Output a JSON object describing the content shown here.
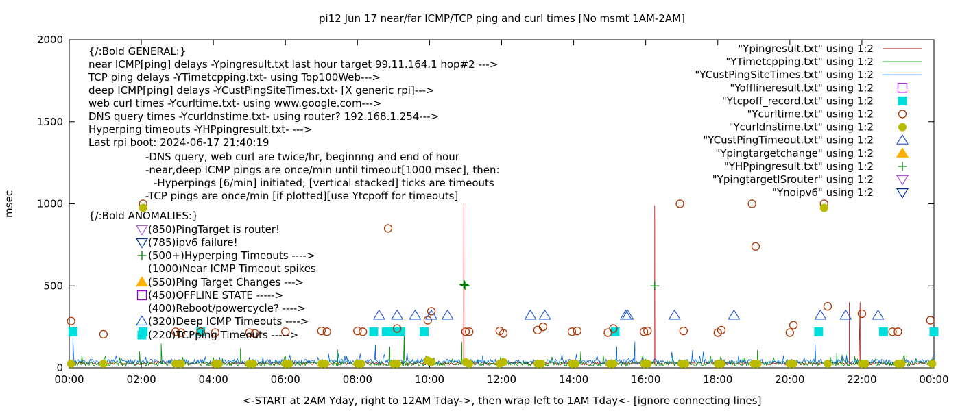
{
  "chart_data": {
    "type": "line",
    "title": "pi12  Jun 17  near/far ICMP/TCP ping and curl times [No msmt 1AM-2AM]",
    "xlabel": "<-START at 2AM Yday, right to 12AM Tday->, then wrap left to 1AM Tday<- [ignore connecting lines]",
    "ylabel": "msec",
    "xlim": [
      0,
      24
    ],
    "ylim": [
      0,
      2000
    ],
    "x_tick_labels": [
      "00:00",
      "02:00",
      "04:00",
      "06:00",
      "08:00",
      "10:00",
      "12:00",
      "14:00",
      "16:00",
      "18:00",
      "20:00",
      "22:00",
      "00:00"
    ],
    "x_ticks": [
      0,
      2,
      4,
      6,
      8,
      10,
      12,
      14,
      16,
      18,
      20,
      22,
      24
    ],
    "y_ticks": [
      0,
      500,
      1000,
      1500,
      2000
    ],
    "y_tick_labels": [
      "0",
      "500",
      "1000",
      "1500",
      "2000"
    ],
    "legend_position": "top-right",
    "annotations": [
      "{/:Bold GENERAL:}",
      "near ICMP[ping] delays -Ypingresult.txt last hour target 99.11.164.1 hop#2 --->",
      "TCP ping delays -YTimetcpping.txt- using Top100Web--->",
      "deep ICMP[ping] delays -YCustPingSiteTimes.txt- [X generic rpi]--->",
      "web curl times -Ycurltime.txt- using www.google.com--->",
      "DNS query times -Ycurldnstime.txt- using router? 192.168.1.254--->",
      "Hyperping timeouts -YHPpingresult.txt- --->",
      "Last rpi boot: 2024-06-17 21:40:19",
      "-DNS query, web curl are twice/hr, beginnng and end of hour",
      "-near,deep ICMP pings are once/min until timeout[1000 msec], then:",
      "-Hyperpings [6/min] initiated; [vertical stacked] ticks are timeouts",
      "-TCP pings are once/min [if plotted][use Ytcpoff for timeouts]",
      "{/:Bold ANOMALIES:}",
      "(850)PingTarget is router!",
      "(785)ipv6 failure!",
      "(500+)Hyperping Timeouts ---->",
      "(1000)Near ICMP Timeout spikes",
      "(550)Ping Target Changes --->",
      "(450)OFFLINE STATE ----->",
      "(400)Reboot/powercycle? ---->",
      "(320)Deep ICMP Timeouts ---->",
      "(220)TCPping Timeouts ----->"
    ],
    "series": [
      {
        "name": "\"Ypingresult.txt\" using 1:2",
        "color": "#cc0000",
        "style": "line",
        "baseline": 22,
        "spikes": [
          [
            10.95,
            1000
          ],
          [
            16.25,
            990
          ]
        ],
        "plateau": {
          "x": [
            21.65,
            21.95
          ],
          "y": 400
        }
      },
      {
        "name": "\"YTimetcpping.txt\" using 1:2",
        "color": "#009900",
        "style": "line",
        "baseline": 25,
        "spikes": [
          [
            1.95,
            100
          ],
          [
            2.55,
            150
          ],
          [
            4.75,
            120
          ],
          [
            7.45,
            110
          ],
          [
            8.9,
            130
          ],
          [
            9.3,
            240
          ],
          [
            10.9,
            160
          ],
          [
            14.2,
            100
          ],
          [
            19.1,
            110
          ],
          [
            21.3,
            90
          ]
        ]
      },
      {
        "name": "\"YCustPingSiteTimes.txt\" using 1:2",
        "color": "#0066dd",
        "style": "line",
        "baseline": 38,
        "spikes": [
          [
            0.1,
            180
          ],
          [
            8.5,
            140
          ],
          [
            15.2,
            130
          ],
          [
            15.7,
            160
          ],
          [
            17.3,
            110
          ],
          [
            20.7,
            150
          ]
        ]
      },
      {
        "name": "\"Yofflineresult.txt\" using 1:2",
        "color": "#9400d3",
        "style": "square-open",
        "x": [],
        "y": []
      },
      {
        "name": "\"Ytcpoff_record.txt\" using 1:2",
        "color": "#00dddd",
        "style": "square-filled",
        "x": [
          0.1,
          2.05,
          3.65,
          8.45,
          8.8,
          9.0,
          9.2,
          9.85,
          15.15,
          20.8,
          22.6,
          24.0
        ],
        "y": [
          220,
          220,
          220,
          220,
          220,
          220,
          220,
          220,
          220,
          220,
          220,
          220
        ]
      },
      {
        "name": "\"Ycurltime.txt\" using 1:2",
        "color": "#aa3300",
        "style": "circle-open",
        "x": [
          0.05,
          0.95,
          2.05,
          2.95,
          3.1,
          3.65,
          4.05,
          5.0,
          5.15,
          6.0,
          7.0,
          7.15,
          8.0,
          8.15,
          8.85,
          9.1,
          9.95,
          10.05,
          11.0,
          11.1,
          11.95,
          12.05,
          13.0,
          13.15,
          13.95,
          14.1,
          14.95,
          15.1,
          15.95,
          16.05,
          16.95,
          17.05,
          18.0,
          18.1,
          18.95,
          19.05,
          20.0,
          20.1,
          20.95,
          21.05,
          22.0,
          22.85,
          23.0,
          23.9
        ],
        "y": [
          285,
          205,
          1000,
          220,
          215,
          220,
          215,
          215,
          210,
          220,
          225,
          220,
          225,
          220,
          850,
          240,
          290,
          345,
          220,
          220,
          225,
          210,
          230,
          250,
          220,
          225,
          215,
          240,
          220,
          225,
          1000,
          225,
          215,
          230,
          1000,
          740,
          215,
          260,
          1000,
          375,
          330,
          220,
          220,
          290
        ]
      },
      {
        "name": "\"Ycurldnstime.txt\" using 1:2",
        "color": "#bbbb00",
        "style": "circle-filled",
        "x": [
          0.05,
          0.95,
          2.05,
          2.95,
          3.1,
          4.05,
          4.15,
          5.0,
          5.1,
          6.0,
          6.1,
          7.0,
          7.1,
          8.0,
          8.1,
          9.0,
          9.1,
          9.95,
          10.05,
          11.0,
          11.1,
          11.95,
          12.05,
          13.0,
          13.1,
          13.95,
          14.05,
          15.0,
          15.1,
          15.95,
          16.05,
          17.0,
          17.1,
          18.0,
          18.1,
          19.0,
          19.1,
          20.0,
          20.1,
          20.95,
          21.05,
          22.0,
          22.1,
          23.0,
          23.1,
          23.95
        ],
        "y": [
          25,
          25,
          975,
          25,
          25,
          25,
          25,
          25,
          25,
          25,
          25,
          25,
          25,
          25,
          25,
          25,
          25,
          45,
          35,
          35,
          25,
          25,
          35,
          25,
          25,
          25,
          25,
          25,
          25,
          25,
          25,
          25,
          25,
          25,
          25,
          25,
          25,
          25,
          25,
          975,
          25,
          25,
          25,
          25,
          25,
          25
        ]
      },
      {
        "name": "\"YCustPingTimeout.txt\" using 1:2",
        "color": "#2255cc",
        "style": "triangle-up-open",
        "x": [
          8.6,
          9.1,
          9.6,
          10.05,
          10.5,
          12.8,
          13.2,
          15.45,
          15.5,
          16.8,
          18.45,
          20.85,
          21.55,
          22.45
        ],
        "y": [
          320,
          320,
          320,
          320,
          320,
          320,
          320,
          320,
          320,
          320,
          320,
          320,
          320,
          320
        ]
      },
      {
        "name": "\"Ypingtargetchange\" using 1:2",
        "color": "#ffb000",
        "style": "triangle-up-filled",
        "x": [],
        "y": []
      },
      {
        "name": "\"YHPpingresult.txt\" using 1:2",
        "color": "#007700",
        "style": "plus",
        "x": [
          10.95,
          10.97,
          11.0,
          16.25
        ],
        "y": [
          510,
          505,
          500,
          500
        ]
      },
      {
        "name": "\"YpingtargetISrouter\" using 1:2",
        "color": "#aa55dd",
        "style": "triangle-down-open",
        "x": [],
        "y": []
      },
      {
        "name": "\"Ynoipv6\" using 1:2",
        "color": "#003399",
        "style": "triangle-down-open",
        "x": [],
        "y": []
      }
    ]
  }
}
